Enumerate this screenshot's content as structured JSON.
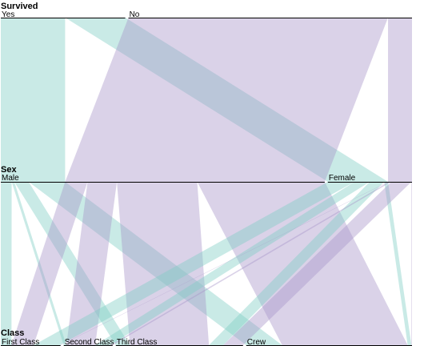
{
  "chart_data": {
    "type": "parallel-sets",
    "dimensions": [
      {
        "name": "Survived",
        "categories": [
          "Yes",
          "No"
        ]
      },
      {
        "name": "Sex",
        "categories": [
          "Male",
          "Female"
        ]
      },
      {
        "name": "Class",
        "categories": [
          "First Class",
          "Second Class",
          "Third Class",
          "Crew"
        ]
      }
    ],
    "counts": [
      {
        "survived": "Yes",
        "sex": "Male",
        "class": "First Class",
        "value": 57
      },
      {
        "survived": "Yes",
        "sex": "Male",
        "class": "Second Class",
        "value": 14
      },
      {
        "survived": "Yes",
        "sex": "Male",
        "class": "Third Class",
        "value": 75
      },
      {
        "survived": "Yes",
        "sex": "Male",
        "class": "Crew",
        "value": 192
      },
      {
        "survived": "Yes",
        "sex": "Female",
        "class": "First Class",
        "value": 140
      },
      {
        "survived": "Yes",
        "sex": "Female",
        "class": "Second Class",
        "value": 80
      },
      {
        "survived": "Yes",
        "sex": "Female",
        "class": "Third Class",
        "value": 76
      },
      {
        "survived": "Yes",
        "sex": "Female",
        "class": "Crew",
        "value": 20
      },
      {
        "survived": "No",
        "sex": "Male",
        "class": "First Class",
        "value": 118
      },
      {
        "survived": "No",
        "sex": "Male",
        "class": "Second Class",
        "value": 154
      },
      {
        "survived": "No",
        "sex": "Male",
        "class": "Third Class",
        "value": 422
      },
      {
        "survived": "No",
        "sex": "Male",
        "class": "Crew",
        "value": 670
      },
      {
        "survived": "No",
        "sex": "Female",
        "class": "First Class",
        "value": 4
      },
      {
        "survived": "No",
        "sex": "Female",
        "class": "Second Class",
        "value": 13
      },
      {
        "survived": "No",
        "sex": "Female",
        "class": "Third Class",
        "value": 106
      },
      {
        "survived": "No",
        "sex": "Female",
        "class": "Crew",
        "value": 3
      }
    ],
    "colors": {
      "Yes": "#7ecdc4",
      "No": "#a893c9"
    },
    "ribbon_opacity": 0.42
  }
}
